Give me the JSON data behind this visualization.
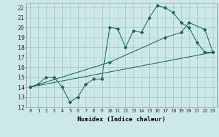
{
  "xlabel": "Humidex (Indice chaleur)",
  "background_color": "#cce8e8",
  "grid_color": "#aacccc",
  "line_color": "#1a6b5a",
  "xlim": [
    -0.5,
    23.5
  ],
  "ylim": [
    12,
    22.5
  ],
  "xticks": [
    0,
    1,
    2,
    3,
    4,
    5,
    6,
    7,
    8,
    9,
    10,
    11,
    12,
    13,
    14,
    15,
    16,
    17,
    18,
    19,
    20,
    21,
    22,
    23
  ],
  "yticks": [
    12,
    13,
    14,
    15,
    16,
    17,
    18,
    19,
    20,
    21,
    22
  ],
  "line1_x": [
    0,
    1,
    2,
    3,
    4,
    5,
    6,
    7,
    8,
    9,
    10,
    11,
    12,
    13,
    14,
    15,
    16,
    17,
    18,
    19,
    20,
    21,
    22,
    23
  ],
  "line1_y": [
    14,
    14.3,
    15,
    15,
    14,
    12.5,
    13,
    14.3,
    14.8,
    14.8,
    20,
    19.9,
    18,
    19.7,
    19.5,
    21,
    22.2,
    22,
    21.5,
    20.5,
    20,
    18.5,
    17.5,
    17.5
  ],
  "line2_x": [
    0,
    23
  ],
  "line2_y": [
    14,
    17.5
  ],
  "line3_x": [
    0,
    10,
    17,
    19,
    20,
    22,
    23
  ],
  "line3_y": [
    14,
    16.5,
    19,
    19.5,
    20.5,
    19.8,
    17.5
  ]
}
